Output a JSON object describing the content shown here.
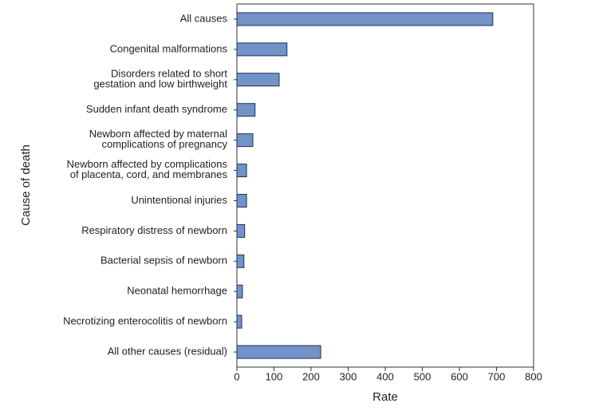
{
  "chart_data": {
    "type": "bar",
    "orientation": "horizontal",
    "x_label": "Rate",
    "y_label": "Cause of death",
    "categories": [
      "All causes",
      "Congenital malformations",
      "Disorders related to short\ngestation and low birthweight",
      "Sudden infant death syndrome",
      "Newborn affected by maternal\ncomplications of pregnancy",
      "Newborn affected by complications\nof placenta, cord, and membranes",
      "Unintentional injuries",
      "Respiratory distress of newborn",
      "Bacterial sepsis of newborn",
      "Neonatal hemorrhage",
      "Necrotizing enterocolitis of newborn",
      "All other causes (residual)"
    ],
    "values": [
      690,
      135,
      114,
      49,
      43,
      26,
      26,
      21,
      19,
      15,
      13,
      226
    ],
    "color": "#7193c8",
    "xlim": [
      0,
      800
    ],
    "xticks": [
      0,
      100,
      200,
      300,
      400,
      500,
      600,
      700,
      800
    ],
    "grid": false
  }
}
